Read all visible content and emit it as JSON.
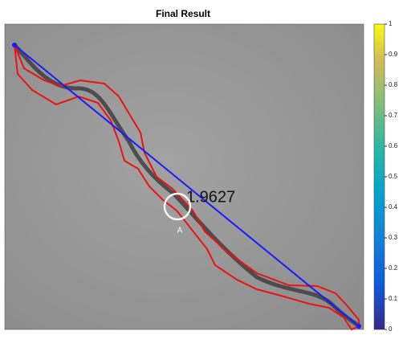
{
  "title": "Final Result",
  "measurement": "1.9627",
  "marker_label": "A",
  "colorbar": {
    "ticks": [
      "0",
      "0.1",
      "0.2",
      "0.3",
      "0.4",
      "0.5",
      "0.6",
      "0.7",
      "0.8",
      "0.9",
      "1"
    ]
  }
}
